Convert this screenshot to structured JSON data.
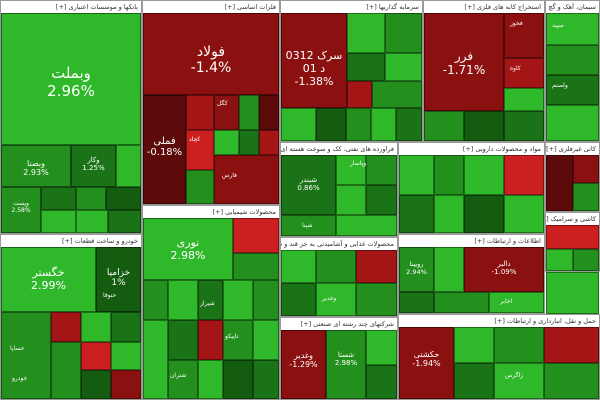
{
  "colors": {
    "green_bright": "#2fb82a",
    "green": "#23901e",
    "green_mid": "#1a7417",
    "green_dark": "#135c10",
    "red_dark": "#5c0a0a",
    "red": "#8b1010",
    "red_mid": "#a41616",
    "red_bright": "#cc2020",
    "grey": "#b5b5b5"
  },
  "sectors": [
    {
      "id": "banks",
      "header": "بانکها و موسسات اعتباری [+]"
    },
    {
      "id": "basic_metals",
      "header": "فلزات اساسی [+]"
    },
    {
      "id": "investment",
      "header": "سرمایه گذاریها [+]"
    },
    {
      "id": "mining",
      "header": "استخراج کانه های فلزی [+]"
    },
    {
      "id": "cement",
      "header": "سیمان، آهک و گچ [+]"
    },
    {
      "id": "automotive",
      "header": "خودرو و ساخت قطعات [+]"
    },
    {
      "id": "refinery",
      "header": "فراورده های نفتی، کک و سوخت هسته ای [+]"
    },
    {
      "id": "chemical",
      "header": "محصولات شیمیایی [+]"
    },
    {
      "id": "food",
      "header": "محصولات غذایی و آشامیدنی به جز قند و شکر [+]"
    },
    {
      "id": "multi",
      "header": "شرکتهای چند رشته ای صنعتی [+]"
    },
    {
      "id": "pharma",
      "header": "مواد و محصولات دارویی [+]"
    },
    {
      "id": "telecom",
      "header": "اطلاعات و ارتباطات [+]"
    },
    {
      "id": "transport",
      "header": "حمل و نقل، انبارداری و ارتباطات [+]"
    },
    {
      "id": "minerals",
      "header": "کانی غیرفلزی [+]"
    },
    {
      "id": "tile",
      "header": "کاشی و سرامیک [+]"
    }
  ],
  "tiles": [
    {
      "id": "vbemellat",
      "name": "وبملت",
      "pct": "2.96%"
    },
    {
      "id": "vsina",
      "name": "وبصنا",
      "pct": "2.93%"
    },
    {
      "id": "vkar",
      "name": "وکار",
      "pct": "1.25%"
    },
    {
      "id": "vpost",
      "name": "وپست",
      "pct": "2.58%"
    },
    {
      "id": "foolad",
      "name": "فولاد",
      "pct": "-1.4%"
    },
    {
      "id": "fameli",
      "name": "فملی",
      "pct": "-0.18%"
    },
    {
      "id": "saras",
      "name": "سرک 0312 د 01",
      "pct": "-1.38%"
    },
    {
      "id": "farr",
      "name": "فرر",
      "pct": "-1.71%"
    },
    {
      "id": "khegostar",
      "name": "خگستر",
      "pct": "2.99%"
    },
    {
      "id": "khazamia",
      "name": "خزامیا",
      "pct": "1%"
    },
    {
      "id": "shabandar",
      "name": "شبندر",
      "pct": "0.86%"
    },
    {
      "id": "noori",
      "name": "نوری",
      "pct": "2.98%"
    },
    {
      "id": "ghadir",
      "name": "وغدیر",
      "pct": "-1.29%"
    },
    {
      "id": "shesta",
      "name": "شستا",
      "pct": "2.98%"
    },
    {
      "id": "hekeshti",
      "name": "حکشتی",
      "pct": "-1.94%"
    },
    {
      "id": "dalborz",
      "name": "دالبر",
      "pct": "-1.09%"
    },
    {
      "id": "roubina",
      "name": "رویینا",
      "pct": "2.94%"
    }
  ],
  "small_labels": [
    "کچاد",
    "کگل",
    "شپنا",
    "خساپا",
    "فارس",
    "وغدیر",
    "تاپیکو",
    "شتران",
    "وپاسار",
    "فخوز",
    "کاوه",
    "اخابر",
    "سپید",
    "ولصنم",
    "خودرو",
    "شیراز",
    "زاگرس",
    "ختوقا"
  ]
}
